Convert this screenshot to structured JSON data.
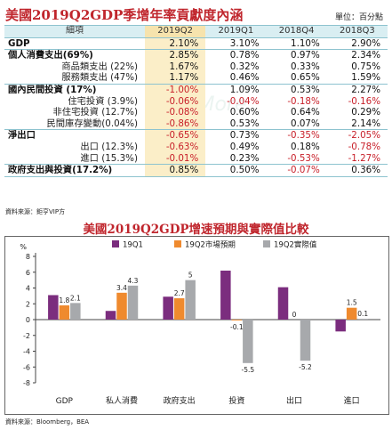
{
  "table": {
    "title": "美國2019Q2GDP季增年率貢獻度內涵",
    "unit": "單位：百分點",
    "headers": [
      "細項",
      "2019Q2",
      "2019Q1",
      "2018Q4",
      "2018Q3"
    ],
    "rows": [
      {
        "label": "GDP",
        "level": 1,
        "values": [
          "2.10%",
          "3.10%",
          "1.10%",
          "2.90%"
        ]
      },
      {
        "label": "個人消費支出(69%)",
        "level": 1,
        "values": [
          "2.85%",
          "0.78%",
          "0.97%",
          "2.34%"
        ]
      },
      {
        "label": "商品類支出 (22%)",
        "level": 2,
        "values": [
          "1.67%",
          "0.32%",
          "0.33%",
          "0.75%"
        ]
      },
      {
        "label": "服務類支出 (47%)",
        "level": 2,
        "values": [
          "1.17%",
          "0.46%",
          "0.65%",
          "1.59%"
        ]
      },
      {
        "label": "國內民間投資 (17%)",
        "level": 1,
        "values": [
          "-1.00%",
          "1.09%",
          "0.53%",
          "2.27%"
        ]
      },
      {
        "label": "住宅投資 (3.9%)",
        "level": 2,
        "values": [
          "-0.06%",
          "-0.04%",
          "-0.18%",
          "-0.16%"
        ]
      },
      {
        "label": "非住宅投資 (12.7%)",
        "level": 2,
        "values": [
          "-0.08%",
          "0.60%",
          "0.64%",
          "0.29%"
        ]
      },
      {
        "label": "民間庫存變動(0.04%)",
        "level": 2,
        "values": [
          "-0.86%",
          "0.53%",
          "0.07%",
          "2.14%"
        ]
      },
      {
        "label": "淨出口",
        "level": 1,
        "values": [
          "-0.65%",
          "0.73%",
          "-0.35%",
          "-2.05%"
        ]
      },
      {
        "label": "出口 (12.3%)",
        "level": 2,
        "values": [
          "-0.63%",
          "0.49%",
          "0.18%",
          "-0.78%"
        ]
      },
      {
        "label": "進口 (15.3%)",
        "level": 2,
        "values": [
          "-0.01%",
          "0.23%",
          "-0.53%",
          "-1.27%"
        ]
      },
      {
        "label": "政府支出與投資(17.2%)",
        "level": 1,
        "values": [
          "0.85%",
          "0.50%",
          "-0.07%",
          "0.36%"
        ]
      }
    ],
    "source": "資料來源：鉅亨VIP方",
    "watermark": "AgoMore"
  },
  "chart": {
    "title": "美國2019Q2GDP增速預期與實際值比較",
    "source": "資料來源：Bloomberg，BEA"
  },
  "colors": {
    "q1": "#7b2d7e",
    "forecast": "#ef8a2e",
    "actual": "#a7a9ac",
    "red": "#c0262d"
  },
  "chart_data": {
    "type": "bar",
    "ylabel": "%",
    "ylim": [
      -8,
      8
    ],
    "yticks": [
      -8,
      -6,
      -4,
      -2,
      0,
      2,
      4,
      6,
      8
    ],
    "categories": [
      "GDP",
      "私人消費",
      "政府支出",
      "投資",
      "出口",
      "進口"
    ],
    "series": [
      {
        "name": "19Q1",
        "values": [
          3.1,
          1.1,
          2.9,
          6.2,
          4.1,
          -1.5
        ],
        "labels": [
          "",
          "",
          "",
          "",
          "",
          ""
        ]
      },
      {
        "name": "19Q2市場預期",
        "values": [
          1.8,
          3.4,
          2.7,
          -0.1,
          0,
          1.5
        ],
        "labels": [
          "1.8",
          "3.4",
          "2.7",
          "-0.1",
          "0",
          "1.5"
        ]
      },
      {
        "name": "19Q2實際值",
        "values": [
          2.1,
          4.3,
          5,
          -5.5,
          -5.2,
          0.1
        ],
        "labels": [
          "2.1",
          "4.3",
          "5",
          "-5.5",
          "-5.2",
          "0.1"
        ]
      }
    ],
    "legend_position": "top",
    "grid": false
  }
}
